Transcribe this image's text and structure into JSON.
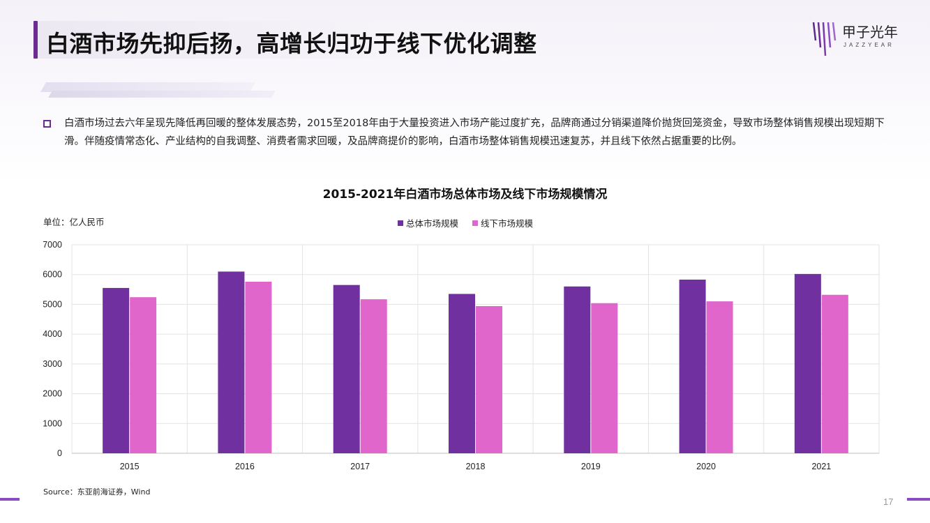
{
  "header": {
    "title": "白酒市场先抑后扬，高增长归功于线下优化调整",
    "logo_text": "甲子光年",
    "logo_sub": "JAZZYEAR"
  },
  "body": {
    "paragraph": "白酒市场过去六年呈现先降低再回暖的整体发展态势，2015至2018年由于大量投资进入市场产能过度扩充，品牌商通过分销渠道降价抛货回笼资金，导致市场整体销售规模出现短期下滑。伴随疫情常态化、产业结构的自我调整、消费者需求回暖，及品牌商提价的影响，白酒市场整体销售规模迅速复苏，并且线下依然占据重要的比例。"
  },
  "chart_data": {
    "type": "bar",
    "title": "2015-2021年白酒市场总体市场及线下市场规模情况",
    "unit_label": "单位：亿人民币",
    "categories": [
      "2015",
      "2016",
      "2017",
      "2018",
      "2019",
      "2020",
      "2021"
    ],
    "series": [
      {
        "name": "总体市场规模",
        "color": "#7030a0",
        "values": [
          5550,
          6100,
          5650,
          5350,
          5600,
          5830,
          6020
        ]
      },
      {
        "name": "线下市场规模",
        "color": "#e066cc",
        "values": [
          5240,
          5760,
          5170,
          4940,
          5040,
          5100,
          5320
        ]
      }
    ],
    "ylim": [
      0,
      7000
    ],
    "yticks": [
      "0",
      "1000",
      "2000",
      "3000",
      "4000",
      "5000",
      "6000",
      "7000"
    ],
    "grid": true,
    "legend_position": "top-center"
  },
  "footer": {
    "source": "Source：东亚前海证券，Wind",
    "page_number": "17"
  }
}
